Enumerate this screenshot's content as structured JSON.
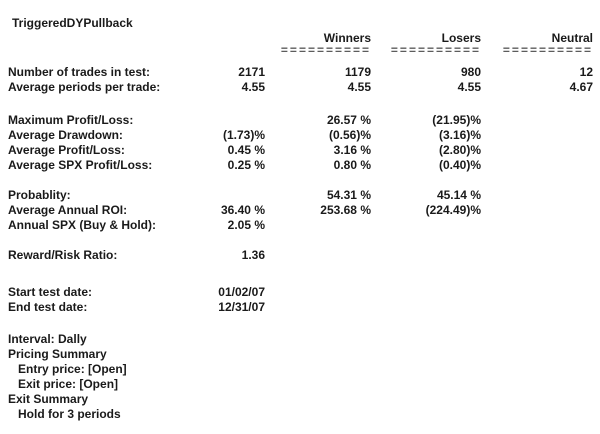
{
  "title": "TriggeredDYPullback",
  "table": {
    "column_headers": {
      "winners": "Winners",
      "losers": "Losers",
      "neutral": "Neutral"
    },
    "header_separator": "==========",
    "rows": [
      {
        "label": "Number of trades in test:",
        "total": "2171",
        "winners": "1179",
        "losers": "980",
        "neutral": "12"
      },
      {
        "label": "Average periods per trade:",
        "total": "4.55",
        "winners": "4.55",
        "losers": "4.55",
        "neutral": "4.67"
      },
      {
        "label": "Maximum Profit/Loss:",
        "total": "",
        "winners": "26.57 %",
        "losers": "(21.95)%",
        "neutral": ""
      },
      {
        "label": "Average Drawdown:",
        "total": "(1.73)%",
        "winners": "(0.56)%",
        "losers": "(3.16)%",
        "neutral": ""
      },
      {
        "label": "Average Profit/Loss:",
        "total": "0.45 %",
        "winners": "3.16 %",
        "losers": "(2.80)%",
        "neutral": ""
      },
      {
        "label": "Average SPX Profit/Loss:",
        "total": "0.25 %",
        "winners": "0.80 %",
        "losers": "(0.40)%",
        "neutral": ""
      },
      {
        "label": "Probablity:",
        "total": "",
        "winners": "54.31 %",
        "losers": "45.14 %",
        "neutral": ""
      },
      {
        "label": "Average Annual ROI:",
        "total": "36.40 %",
        "winners": "253.68 %",
        "losers": "(224.49)%",
        "neutral": ""
      },
      {
        "label": "Annual SPX (Buy & Hold):",
        "total": "2.05 %",
        "winners": "",
        "losers": "",
        "neutral": ""
      },
      {
        "label": "Reward/Risk Ratio:",
        "total": "1.36",
        "winners": "",
        "losers": "",
        "neutral": ""
      },
      {
        "label": "Start test date:",
        "total": "01/02/07",
        "winners": "",
        "losers": "",
        "neutral": ""
      },
      {
        "label": "End test date:",
        "total": "12/31/07",
        "winners": "",
        "losers": "",
        "neutral": ""
      }
    ]
  },
  "footer": {
    "lines": [
      {
        "text": "Interval: Dally"
      },
      {
        "text": "Pricing Summary"
      },
      {
        "text": "Entry price: [Open]"
      },
      {
        "text": "Exit price: [Open]"
      },
      {
        "text": "Exit Summary"
      },
      {
        "text": "Hold for 3 periods"
      }
    ]
  },
  "colors": {
    "text": "#1a1a1a",
    "separator": "#5c5c5c",
    "background": "#ffffff"
  }
}
